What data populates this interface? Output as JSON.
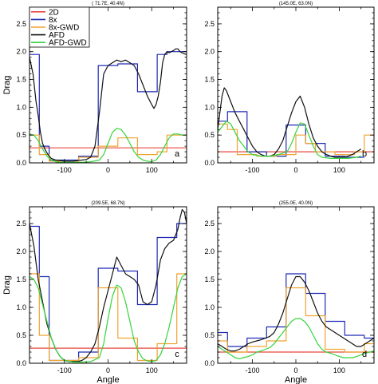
{
  "colors": {
    "2D": "#e8473f",
    "8x": "#1f2bb5",
    "8x-GWD": "#f0a431",
    "AFD": "#111111",
    "AFD-GWD": "#35d43a"
  },
  "chart_data": [
    {
      "type": "line",
      "title": "( 71.7E, 40.4N)",
      "panel_label": "a",
      "xlabel": "",
      "ylabel": "Drag",
      "xlim": [
        -180,
        180
      ],
      "ylim": [
        0,
        2.8
      ],
      "xticks": [
        -100,
        0,
        100
      ],
      "yticks": [
        0.0,
        0.5,
        1.0,
        1.5,
        2.0,
        2.5
      ],
      "legend": [
        "2D",
        "8x",
        "8x-GWD",
        "AFD",
        "AFD-GWD"
      ],
      "legend_position": "top-left",
      "series": [
        {
          "name": "2D",
          "x": [
            -180,
            180
          ],
          "y": [
            0.27,
            0.27
          ]
        },
        {
          "name": "8x",
          "x": [
            -180,
            -157.5,
            -157.5,
            -135,
            -135,
            -67.5,
            -67.5,
            -22.5,
            -22.5,
            22.5,
            22.5,
            67.5,
            67.5,
            112.5,
            112.5,
            135,
            135,
            180
          ],
          "y": [
            1.95,
            1.95,
            0.3,
            0.3,
            0.05,
            0.05,
            0.12,
            0.12,
            1.75,
            1.75,
            1.78,
            1.78,
            1.28,
            1.28,
            1.95,
            1.95,
            2.0,
            2.0
          ]
        },
        {
          "name": "8x-GWD",
          "x": [
            -180,
            -157.5,
            -157.5,
            -135,
            -135,
            -67.5,
            -67.5,
            -22.5,
            -22.5,
            22.5,
            22.5,
            67.5,
            67.5,
            112.5,
            112.5,
            135,
            135,
            180
          ],
          "y": [
            0.5,
            0.5,
            0.15,
            0.15,
            0.03,
            0.03,
            0.1,
            0.1,
            0.3,
            0.3,
            0.45,
            0.45,
            0.15,
            0.15,
            0.2,
            0.2,
            0.5,
            0.5
          ]
        },
        {
          "name": "AFD",
          "x": [
            -180,
            -172,
            -165,
            -160,
            -155,
            -150,
            -145,
            -140,
            -135,
            -130,
            -120,
            -110,
            -100,
            -90,
            -80,
            -70,
            -60,
            -50,
            -40,
            -30,
            -20,
            -10,
            0,
            10,
            20,
            30,
            40,
            50,
            60,
            70,
            80,
            90,
            100,
            105,
            110,
            115,
            120,
            125,
            130,
            135,
            140,
            145,
            150,
            155,
            160,
            165,
            170,
            175,
            180
          ],
          "y": [
            1.9,
            1.6,
            1.1,
            0.85,
            0.55,
            0.35,
            0.25,
            0.18,
            0.12,
            0.08,
            0.05,
            0.04,
            0.03,
            0.03,
            0.03,
            0.04,
            0.05,
            0.06,
            0.1,
            0.3,
            0.9,
            1.6,
            1.75,
            1.8,
            1.85,
            1.82,
            1.85,
            1.8,
            1.75,
            1.6,
            1.4,
            1.2,
            1.05,
            0.98,
            1.05,
            1.2,
            1.45,
            1.8,
            1.95,
            2.0,
            1.98,
            2.0,
            2.02,
            2.05,
            2.05,
            2.0,
            1.98,
            1.96,
            1.95
          ]
        },
        {
          "name": "AFD-GWD",
          "x": [
            -180,
            -170,
            -160,
            -150,
            -140,
            -130,
            -120,
            -110,
            -100,
            -80,
            -60,
            -40,
            -20,
            -10,
            0,
            10,
            20,
            30,
            40,
            50,
            60,
            70,
            80,
            90,
            100,
            110,
            120,
            130,
            140,
            150,
            160,
            170,
            180
          ],
          "y": [
            0.52,
            0.5,
            0.4,
            0.25,
            0.12,
            0.05,
            0.02,
            0.01,
            0.01,
            0.01,
            0.01,
            0.02,
            0.05,
            0.15,
            0.35,
            0.55,
            0.62,
            0.6,
            0.5,
            0.35,
            0.2,
            0.1,
            0.05,
            0.03,
            0.02,
            0.05,
            0.15,
            0.3,
            0.45,
            0.52,
            0.52,
            0.5,
            0.5
          ]
        }
      ]
    },
    {
      "type": "line",
      "title": "(145.0E, 63.0N)",
      "panel_label": "b",
      "xlabel": "",
      "ylabel": "",
      "xlim": [
        -180,
        180
      ],
      "ylim": [
        0,
        2.8
      ],
      "xticks": [
        -100,
        0,
        100
      ],
      "yticks": [
        0.0,
        0.5,
        1.0,
        1.5,
        2.0,
        2.5
      ],
      "series": [
        {
          "name": "2D",
          "x": [
            -180,
            180
          ],
          "y": [
            0.2,
            0.2
          ]
        },
        {
          "name": "8x",
          "x": [
            -180,
            -157.5,
            -157.5,
            -112.5,
            -112.5,
            -67.5,
            -67.5,
            -22.5,
            -22.5,
            22.5,
            22.5,
            67.5,
            67.5,
            112.5,
            112.5,
            157.5
          ],
          "y": [
            0.75,
            0.75,
            0.92,
            0.92,
            0.2,
            0.2,
            0.12,
            0.12,
            0.68,
            0.68,
            0.35,
            0.35,
            0.12,
            0.12,
            0.1,
            0.1
          ]
        },
        {
          "name": "8x-GWD",
          "x": [
            -180,
            -157.5,
            -157.5,
            -135,
            -135,
            -90,
            -90,
            -45,
            -45,
            0,
            0,
            22.5,
            22.5,
            45,
            45,
            90,
            90,
            135,
            135,
            157.5,
            157.5,
            180
          ],
          "y": [
            0.7,
            0.7,
            0.6,
            0.6,
            0.15,
            0.15,
            0.12,
            0.12,
            0.15,
            0.15,
            0.5,
            0.5,
            0.35,
            0.35,
            0.2,
            0.2,
            0.15,
            0.15,
            0.2,
            0.2,
            0.5,
            0.5
          ]
        },
        {
          "name": "AFD",
          "x": [
            -180,
            -175,
            -170,
            -165,
            -160,
            -150,
            -140,
            -130,
            -120,
            -110,
            -100,
            -90,
            -80,
            -70,
            -60,
            -50,
            -40,
            -30,
            -20,
            -10,
            0,
            10,
            20,
            30,
            40,
            50,
            60,
            70,
            80,
            90,
            100,
            110,
            120,
            130,
            140,
            150
          ],
          "y": [
            0.6,
            0.9,
            1.2,
            1.35,
            1.3,
            1.1,
            0.9,
            0.75,
            0.6,
            0.45,
            0.3,
            0.2,
            0.15,
            0.12,
            0.12,
            0.15,
            0.25,
            0.4,
            0.65,
            0.9,
            1.1,
            1.2,
            1.0,
            0.7,
            0.45,
            0.3,
            0.2,
            0.15,
            0.12,
            0.1,
            0.1,
            0.1,
            0.12,
            0.15,
            0.2,
            0.25
          ]
        },
        {
          "name": "AFD-GWD",
          "x": [
            -180,
            -170,
            -160,
            -150,
            -140,
            -130,
            -120,
            -110,
            -100,
            -80,
            -60,
            -40,
            -20,
            -10,
            0,
            10,
            20,
            30,
            40,
            50,
            60,
            80,
            100,
            120,
            140,
            150
          ],
          "y": [
            0.55,
            0.65,
            0.75,
            0.7,
            0.55,
            0.4,
            0.3,
            0.2,
            0.15,
            0.12,
            0.12,
            0.15,
            0.2,
            0.35,
            0.55,
            0.72,
            0.7,
            0.5,
            0.3,
            0.15,
            0.1,
            0.08,
            0.08,
            0.08,
            0.1,
            0.12
          ]
        }
      ]
    },
    {
      "type": "line",
      "title": "(209.5E, 68.7N)",
      "panel_label": "c",
      "xlabel": "Angle",
      "ylabel": "Drag",
      "xlim": [
        -180,
        180
      ],
      "ylim": [
        0,
        2.8
      ],
      "xticks": [
        -100,
        0,
        100
      ],
      "yticks": [
        0.0,
        0.5,
        1.0,
        1.5,
        2.0,
        2.5
      ],
      "series": [
        {
          "name": "2D",
          "x": [
            -180,
            180
          ],
          "y": [
            0.27,
            0.27
          ]
        },
        {
          "name": "8x",
          "x": [
            -180,
            -157.5,
            -157.5,
            -135,
            -135,
            -67.5,
            -67.5,
            -22.5,
            -22.5,
            22.5,
            22.5,
            67.5,
            67.5,
            112.5,
            112.5,
            157.5,
            157.5,
            180
          ],
          "y": [
            2.45,
            2.45,
            1.55,
            1.55,
            0.05,
            0.05,
            0.2,
            0.2,
            1.7,
            1.7,
            1.65,
            1.65,
            1.05,
            1.05,
            2.25,
            2.25,
            2.5,
            2.5
          ]
        },
        {
          "name": "8x-GWD",
          "x": [
            -180,
            -157.5,
            -157.5,
            -135,
            -135,
            -67.5,
            -67.5,
            -22.5,
            -22.5,
            22.5,
            22.5,
            67.5,
            67.5,
            112.5,
            112.5,
            157.5,
            157.5,
            180
          ],
          "y": [
            1.6,
            1.6,
            0.5,
            0.5,
            0.05,
            0.05,
            0.1,
            0.1,
            1.35,
            1.35,
            0.45,
            0.45,
            0.05,
            0.05,
            0.35,
            0.35,
            1.6,
            1.6
          ]
        },
        {
          "name": "AFD",
          "x": [
            -180,
            -170,
            -160,
            -150,
            -140,
            -130,
            -120,
            -110,
            -100,
            -90,
            -80,
            -70,
            -60,
            -50,
            -40,
            -30,
            -20,
            -10,
            0,
            10,
            20,
            30,
            40,
            50,
            60,
            70,
            80,
            90,
            100,
            110,
            120,
            130,
            140,
            150,
            160,
            165,
            170,
            175,
            180
          ],
          "y": [
            2.5,
            2.1,
            1.5,
            1.1,
            0.7,
            0.45,
            0.25,
            0.12,
            0.05,
            0.03,
            0.03,
            0.03,
            0.05,
            0.1,
            0.2,
            0.35,
            0.65,
            1.0,
            1.3,
            1.6,
            1.9,
            1.75,
            1.6,
            1.55,
            1.5,
            1.4,
            1.1,
            1.05,
            1.1,
            1.4,
            1.85,
            2.05,
            2.15,
            2.2,
            2.4,
            2.6,
            2.75,
            2.7,
            2.5
          ]
        },
        {
          "name": "AFD-GWD",
          "x": [
            -180,
            -170,
            -160,
            -150,
            -140,
            -130,
            -120,
            -110,
            -100,
            -80,
            -60,
            -40,
            -20,
            -10,
            0,
            10,
            20,
            30,
            40,
            50,
            60,
            70,
            80,
            90,
            100,
            110,
            120,
            130,
            140,
            150,
            160,
            170,
            180
          ],
          "y": [
            1.55,
            1.5,
            1.35,
            1.05,
            0.75,
            0.45,
            0.25,
            0.12,
            0.05,
            0.02,
            0.02,
            0.03,
            0.1,
            0.35,
            0.8,
            1.2,
            1.4,
            1.35,
            1.1,
            0.75,
            0.4,
            0.2,
            0.08,
            0.04,
            0.03,
            0.05,
            0.15,
            0.35,
            0.65,
            1.0,
            1.35,
            1.55,
            1.6
          ]
        }
      ]
    },
    {
      "type": "line",
      "title": "(255.0E, 40.0N)",
      "panel_label": "d",
      "xlabel": "Angle",
      "ylabel": "",
      "xlim": [
        -180,
        180
      ],
      "ylim": [
        0,
        2.8
      ],
      "xticks": [
        -100,
        0,
        100
      ],
      "yticks": [
        0.0,
        0.5,
        1.0,
        1.5,
        2.0,
        2.5
      ],
      "series": [
        {
          "name": "2D",
          "x": [
            -180,
            180
          ],
          "y": [
            0.2,
            0.2
          ]
        },
        {
          "name": "8x",
          "x": [
            -180,
            -157.5,
            -157.5,
            -112.5,
            -112.5,
            -67.5,
            -67.5,
            -22.5,
            -22.5,
            22.5,
            22.5,
            67.5,
            67.5,
            112.5,
            112.5,
            157.5,
            157.5,
            180
          ],
          "y": [
            0.55,
            0.55,
            0.3,
            0.3,
            0.45,
            0.45,
            0.65,
            0.65,
            1.6,
            1.6,
            1.25,
            1.25,
            0.75,
            0.75,
            0.5,
            0.5,
            0.45,
            0.45
          ]
        },
        {
          "name": "8x-GWD",
          "x": [
            -180,
            -157.5,
            -157.5,
            -112.5,
            -112.5,
            -67.5,
            -67.5,
            -22.5,
            -22.5,
            22.5,
            22.5,
            67.5,
            67.5,
            112.5,
            112.5,
            157.5,
            157.5,
            180
          ],
          "y": [
            0.4,
            0.4,
            0.2,
            0.2,
            0.3,
            0.3,
            0.4,
            0.4,
            1.35,
            1.35,
            0.85,
            0.85,
            0.25,
            0.25,
            0.2,
            0.2,
            0.35,
            0.35
          ]
        },
        {
          "name": "AFD",
          "x": [
            -180,
            -170,
            -160,
            -150,
            -140,
            -130,
            -120,
            -110,
            -100,
            -90,
            -80,
            -70,
            -60,
            -50,
            -40,
            -30,
            -20,
            -10,
            0,
            10,
            20,
            30,
            40,
            50,
            60,
            70,
            80,
            90,
            100,
            110,
            120,
            130,
            140,
            150,
            160,
            170,
            180
          ],
          "y": [
            0.35,
            0.3,
            0.25,
            0.22,
            0.22,
            0.25,
            0.3,
            0.35,
            0.38,
            0.4,
            0.42,
            0.45,
            0.48,
            0.55,
            0.7,
            0.9,
            1.15,
            1.4,
            1.55,
            1.55,
            1.45,
            1.3,
            1.1,
            0.9,
            0.75,
            0.65,
            0.6,
            0.55,
            0.5,
            0.45,
            0.4,
            0.35,
            0.3,
            0.3,
            0.35,
            0.4,
            0.45
          ]
        },
        {
          "name": "AFD-GWD",
          "x": [
            -180,
            -170,
            -160,
            -150,
            -140,
            -130,
            -120,
            -110,
            -100,
            -90,
            -80,
            -70,
            -60,
            -50,
            -40,
            -30,
            -20,
            -10,
            0,
            10,
            20,
            30,
            40,
            50,
            60,
            70,
            80,
            90,
            100,
            110,
            120,
            130,
            140,
            150,
            160,
            170,
            180
          ],
          "y": [
            0.3,
            0.25,
            0.2,
            0.15,
            0.1,
            0.08,
            0.1,
            0.12,
            0.15,
            0.2,
            0.22,
            0.25,
            0.28,
            0.35,
            0.45,
            0.55,
            0.65,
            0.75,
            0.8,
            0.8,
            0.75,
            0.65,
            0.5,
            0.35,
            0.25,
            0.2,
            0.18,
            0.15,
            0.12,
            0.1,
            0.1,
            0.1,
            0.12,
            0.15,
            0.18,
            0.2,
            0.22
          ]
        }
      ]
    }
  ]
}
